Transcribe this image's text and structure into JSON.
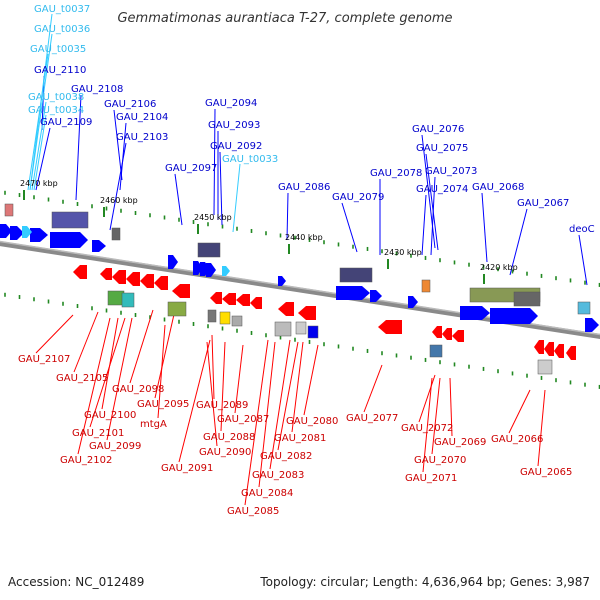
{
  "title": "Gemmatimonas aurantiaca T-27, complete genome",
  "footer": {
    "accession": "Accession: NC_012489",
    "summary": "Topology: circular; Length: 4,636,964 bp; Genes: 3,987"
  },
  "colors": {
    "forward": "#0000ff",
    "reverse": "#ff0000",
    "trna": "#33ccff",
    "forward_label": "#0000cc",
    "reverse_label": "#cc0000",
    "trna_label": "#33bbee",
    "backbone": "#888888",
    "ticks": "#228822"
  },
  "scale_labels": [
    "2470 kbp",
    "2460 kbp",
    "2450 kbp",
    "2440 kbp",
    "2430 kbp",
    "2420 kbp"
  ],
  "forward_labels": [
    "GAU_2110",
    "GAU_2108",
    "GAU_2109",
    "GAU_2106",
    "GAU_2104",
    "GAU_2103",
    "GAU_2094",
    "GAU_2093",
    "GAU_2092",
    "GAU_2097",
    "GAU_2086",
    "GAU_2079",
    "GAU_2078",
    "GAU_2076",
    "GAU_2075",
    "GAU_2073",
    "GAU_2074",
    "GAU_2068",
    "GAU_2067",
    "deoC"
  ],
  "trna_labels": [
    "GAU_t0037",
    "GAU_t0036",
    "GAU_t0035",
    "GAU_t0038",
    "GAU_t0034",
    "GAU_t0033"
  ],
  "reverse_labels": [
    "GAU_2107",
    "GAU_2105",
    "GAU_2098",
    "GAU_2095",
    "mtgA",
    "GAU_2100",
    "GAU_2101",
    "GAU_2099",
    "GAU_2102",
    "GAU_2089",
    "GAU_2087",
    "GAU_2088",
    "GAU_2090",
    "GAU_2091",
    "GAU_2080",
    "GAU_2081",
    "GAU_2082",
    "GAU_2083",
    "GAU_2084",
    "GAU_2085",
    "GAU_2077",
    "GAU_2072",
    "GAU_2069",
    "GAU_2070",
    "GAU_2071",
    "GAU_2066",
    "GAU_2065"
  ]
}
